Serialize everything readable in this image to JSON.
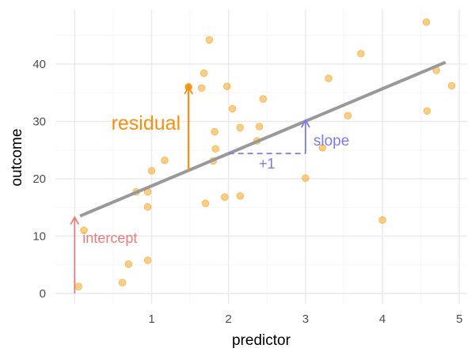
{
  "chart_data": {
    "type": "scatter",
    "xlabel": "predictor",
    "ylabel": "outcome",
    "xlim": [
      -0.25,
      5.1
    ],
    "ylim": [
      -1.8,
      49.5
    ],
    "x_ticks": [
      1,
      2,
      3,
      4,
      5
    ],
    "y_ticks": [
      0,
      10,
      20,
      30,
      40
    ],
    "grid": true,
    "points": [
      {
        "x": 0.05,
        "y": 1.2
      },
      {
        "x": 0.12,
        "y": 11.0
      },
      {
        "x": 0.62,
        "y": 1.9
      },
      {
        "x": 0.7,
        "y": 5.1
      },
      {
        "x": 0.8,
        "y": 17.7
      },
      {
        "x": 0.95,
        "y": 5.8
      },
      {
        "x": 0.95,
        "y": 15.1
      },
      {
        "x": 0.95,
        "y": 17.7
      },
      {
        "x": 1.0,
        "y": 21.4
      },
      {
        "x": 1.17,
        "y": 23.2
      },
      {
        "x": 1.48,
        "y": 36.0
      },
      {
        "x": 1.65,
        "y": 35.8
      },
      {
        "x": 1.68,
        "y": 38.4
      },
      {
        "x": 1.7,
        "y": 15.7
      },
      {
        "x": 1.75,
        "y": 44.2
      },
      {
        "x": 1.8,
        "y": 23.1
      },
      {
        "x": 1.82,
        "y": 28.2
      },
      {
        "x": 1.83,
        "y": 25.2
      },
      {
        "x": 1.95,
        "y": 16.8
      },
      {
        "x": 1.98,
        "y": 36.1
      },
      {
        "x": 2.05,
        "y": 32.2
      },
      {
        "x": 2.15,
        "y": 28.9
      },
      {
        "x": 2.15,
        "y": 17.0
      },
      {
        "x": 2.37,
        "y": 26.6
      },
      {
        "x": 2.4,
        "y": 29.1
      },
      {
        "x": 2.45,
        "y": 33.9
      },
      {
        "x": 3.0,
        "y": 20.1
      },
      {
        "x": 3.22,
        "y": 25.4
      },
      {
        "x": 3.3,
        "y": 37.5
      },
      {
        "x": 3.55,
        "y": 31.0
      },
      {
        "x": 3.72,
        "y": 41.8
      },
      {
        "x": 4.0,
        "y": 12.8
      },
      {
        "x": 4.57,
        "y": 47.3
      },
      {
        "x": 4.58,
        "y": 31.8
      },
      {
        "x": 4.7,
        "y": 38.9
      },
      {
        "x": 4.9,
        "y": 36.2
      }
    ],
    "regression_line": {
      "x": [
        0.07,
        4.82
      ],
      "y": [
        13.5,
        40.3
      ],
      "color": "#999999"
    },
    "intercept_arrow": {
      "x": 0,
      "y_from": 0,
      "y_to": 13.3,
      "color": "#ef7a7e"
    },
    "residual_arrow": {
      "x": 1.48,
      "y_from": 21.3,
      "y_to": 36.0,
      "color": "#f5900e"
    },
    "slope_step": {
      "x_from": 2,
      "x_to": 3,
      "y": 24.4,
      "y_to": 30.2,
      "color": "#7b7bf0"
    },
    "annotations": {
      "residual": "residual",
      "intercept": "intercept",
      "slope": "slope",
      "plus_one": "+1"
    },
    "colors": {
      "points": "#f5a623",
      "residual": "#f5900e",
      "intercept": "#ef7a7e",
      "slope": "#7b7bf0",
      "grid_major": "#ebebeb",
      "grid_minor": "#f5f5f5"
    }
  }
}
